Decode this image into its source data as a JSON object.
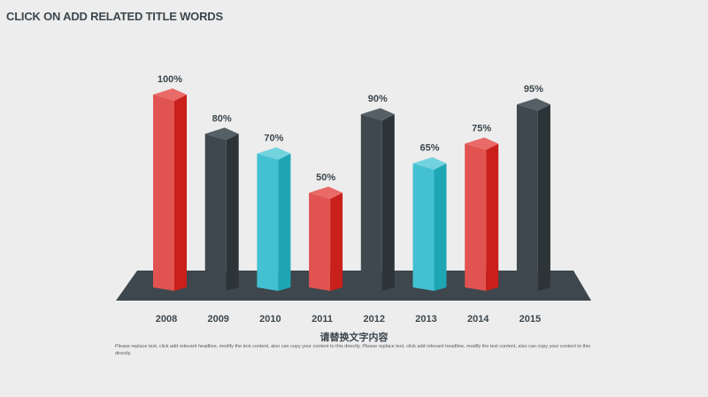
{
  "slide": {
    "title": "CLICK ON ADD RELATED TITLE WORDS",
    "caption": "请替换文字内容",
    "body_text": "Please replace text, click add relevant headline, modify the text content, also can copy your content to this directly. Please replace text, click add relevant headline, modify the text content, also can copy your content to this directly."
  },
  "colors": {
    "red": "#e05350",
    "dark": "#3d474d",
    "cyan": "#43c1d2",
    "background": "#ededed"
  },
  "chart_data": {
    "type": "bar",
    "style": "3d-column",
    "categories": [
      "2008",
      "2009",
      "2010",
      "2011",
      "2012",
      "2013",
      "2014",
      "2015"
    ],
    "values": [
      100,
      80,
      70,
      50,
      90,
      65,
      75,
      95
    ],
    "data_labels": [
      "100%",
      "80%",
      "70%",
      "50%",
      "90%",
      "65%",
      "75%",
      "95%"
    ],
    "bar_colors": [
      "red",
      "dark",
      "cyan",
      "red",
      "dark",
      "cyan",
      "red",
      "dark"
    ],
    "unit": "%",
    "ylim": [
      0,
      100
    ],
    "grid": false,
    "legend": "none"
  }
}
